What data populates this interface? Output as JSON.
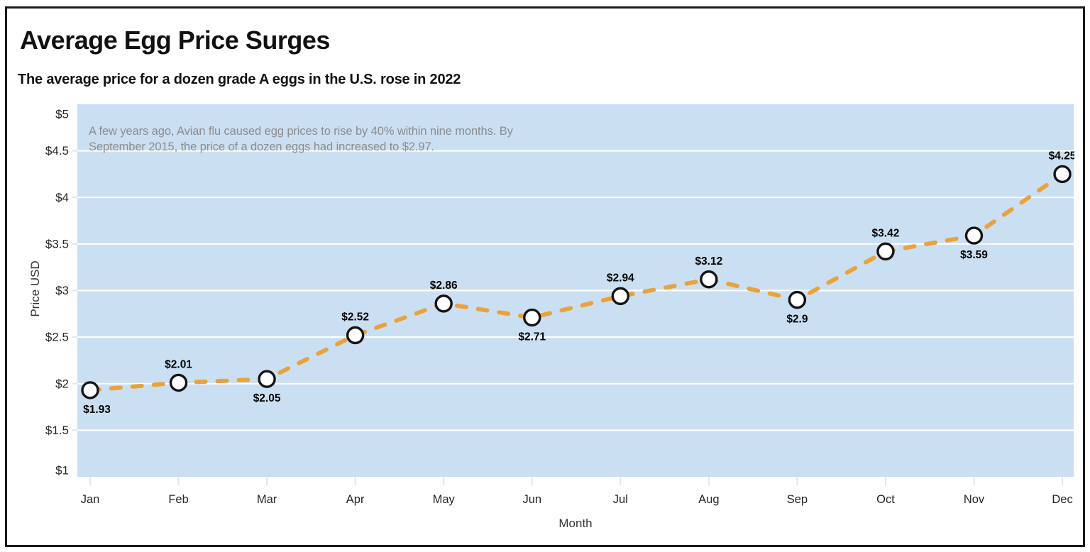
{
  "page": {
    "background": "#FFFFFF",
    "border_color": "#1A1A1A"
  },
  "header": {
    "title": "Average Egg Price Surges",
    "subtitle": "The average price for a dozen grade A eggs in the U.S. rose in 2022"
  },
  "annotation": {
    "lines": [
      "A few years ago, Avian flu caused egg prices to rise by 40% within nine months. By",
      "September 2015, the price of a dozen eggs had increased to $2.97."
    ]
  },
  "chart_data": {
    "type": "line",
    "title": "Average Egg Price Surges",
    "subtitle": "The average price for a dozen grade A eggs in the U.S. rose in 2022",
    "xlabel": "Month",
    "ylabel": "Price USD",
    "categories": [
      "Jan",
      "Feb",
      "Mar",
      "Apr",
      "May",
      "Jun",
      "Jul",
      "Aug",
      "Sep",
      "Oct",
      "Nov",
      "Dec"
    ],
    "values": [
      1.93,
      2.01,
      2.05,
      2.52,
      2.86,
      2.71,
      2.94,
      3.12,
      2.9,
      3.42,
      3.59,
      4.25
    ],
    "point_labels": [
      "$1.93",
      "$2.01",
      "$2.05",
      "$2.52",
      "$2.86",
      "$2.71",
      "$2.94",
      "$3.12",
      "$2.9",
      "$3.42",
      "$3.59",
      "$4.25"
    ],
    "label_placement": [
      "below",
      "above",
      "below",
      "above",
      "above",
      "below",
      "above",
      "above",
      "below",
      "above",
      "below",
      "above"
    ],
    "y_ticks": [
      {
        "value": 5,
        "label": "$5"
      },
      {
        "value": 4.5,
        "label": "$4.5"
      },
      {
        "value": 4,
        "label": "$4"
      },
      {
        "value": 3.5,
        "label": "$3.5"
      },
      {
        "value": 3,
        "label": "$3"
      },
      {
        "value": 2.5,
        "label": "$2.5"
      },
      {
        "value": 2,
        "label": "$2"
      },
      {
        "value": 1.5,
        "label": "$1.5"
      },
      {
        "value": 1,
        "label": "$1"
      }
    ],
    "ylim": [
      1,
      5
    ],
    "grid": "horizontal-only",
    "legend": "none",
    "line_style": "dashed",
    "marker": "open-circle",
    "annotation_text": "A few years ago, Avian flu caused egg prices to rise by 40% within nine months. By September 2015, the price of a dozen eggs had increased to $2.97.",
    "colors": {
      "line": "#E8A33D",
      "marker_fill": "#FFFFFF",
      "marker_stroke": "#141414",
      "plot_bg": "#CBDFF2",
      "gridline": "#FFFFFF",
      "tick_stub": "#DCE7F5",
      "tick_text": "#262626",
      "axis_title_text": "#333333",
      "data_label_text": "#000000",
      "annotation_text": "#8C8C8C"
    }
  }
}
